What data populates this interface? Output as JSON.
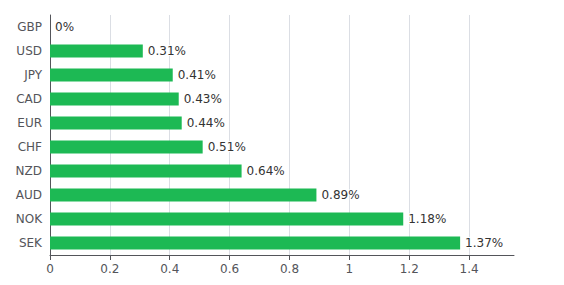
{
  "chart_data": {
    "type": "bar",
    "orientation": "horizontal",
    "categories": [
      "GBP",
      "USD",
      "JPY",
      "CAD",
      "EUR",
      "CHF",
      "NZD",
      "AUD",
      "NOK",
      "SEK"
    ],
    "values": [
      0.0,
      0.31,
      0.41,
      0.43,
      0.44,
      0.51,
      0.64,
      0.89,
      1.18,
      1.37
    ],
    "value_labels": [
      "0%",
      "0.31%",
      "0.41%",
      "0.43%",
      "0.44%",
      "0.51%",
      "0.64%",
      "0.89%",
      "1.18%",
      "1.37%"
    ],
    "data_labels": true,
    "color": "#1db954",
    "xlim": [
      0,
      1.55
    ],
    "xticks": [
      0,
      0.2,
      0.4,
      0.6,
      0.8,
      1,
      1.2,
      1.4
    ],
    "grid": true
  }
}
